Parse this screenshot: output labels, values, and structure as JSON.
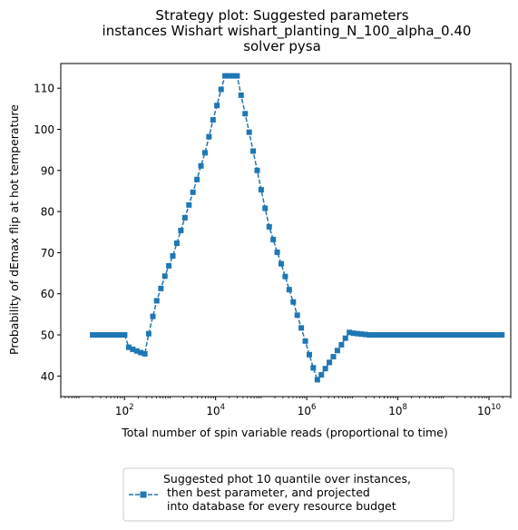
{
  "chart_data": {
    "type": "line",
    "title": [
      "Strategy plot: Suggested parameters",
      "instances Wishart wishart_planting_N_100_alpha_0.40",
      "solver pysa"
    ],
    "xlabel": "Total number of spin variable reads (proportional to time)",
    "ylabel": "Probability of dEmax flip at hot temperature",
    "xscale": "log",
    "xlim": [
      4,
      30000000000
    ],
    "ylim": [
      35,
      116
    ],
    "x_ticks": [
      {
        "value": 100,
        "base": "10",
        "exp": "2"
      },
      {
        "value": 10000,
        "base": "10",
        "exp": "4"
      },
      {
        "value": 1000000,
        "base": "10",
        "exp": "6"
      },
      {
        "value": 100000000,
        "base": "10",
        "exp": "8"
      },
      {
        "value": 10000000000,
        "base": "10",
        "exp": "10"
      }
    ],
    "y_ticks": [
      40,
      50,
      60,
      70,
      80,
      90,
      100,
      110
    ],
    "grid": false,
    "legend_position": "below plot, centered",
    "series": [
      {
        "name": "Suggested phot 10 quantile over instances,\n then best parameter, and projected\n into database for every resource budget",
        "color": "#1f77b4",
        "marker": "square",
        "linestyle": "dashed",
        "points": [
          [
            20,
            50.0
          ],
          [
            24.5,
            50.0
          ],
          [
            30,
            50.0
          ],
          [
            36.8,
            50.0
          ],
          [
            45,
            50.0
          ],
          [
            55.2,
            50.0
          ],
          [
            67.6,
            50.0
          ],
          [
            82.8,
            50.0
          ],
          [
            101,
            50.0
          ],
          [
            124,
            47.0
          ],
          [
            152,
            46.5
          ],
          [
            186,
            46.1
          ],
          [
            228,
            45.7
          ],
          [
            280,
            45.4
          ],
          [
            340,
            50.3
          ],
          [
            420,
            54.5
          ],
          [
            510,
            58.3
          ],
          [
            630,
            61.3
          ],
          [
            770,
            64.3
          ],
          [
            940,
            66.8
          ],
          [
            1150,
            69.2
          ],
          [
            1410,
            72.3
          ],
          [
            1730,
            75.4
          ],
          [
            2120,
            78.5
          ],
          [
            2600,
            81.6
          ],
          [
            3180,
            84.7
          ],
          [
            3900,
            87.8
          ],
          [
            4770,
            91.1
          ],
          [
            5850,
            94.3
          ],
          [
            7160,
            98.2
          ],
          [
            8770,
            102.3
          ],
          [
            10700,
            105.8
          ],
          [
            13200,
            109.7
          ],
          [
            16100,
            113.0
          ],
          [
            19800,
            113.0
          ],
          [
            24200,
            113.0
          ],
          [
            29600,
            113.0
          ],
          [
            36300,
            108.3
          ],
          [
            44500,
            103.8
          ],
          [
            54500,
            99.3
          ],
          [
            66700,
            94.7
          ],
          [
            81700,
            90.0
          ],
          [
            100000,
            85.3
          ],
          [
            122000,
            80.8
          ],
          [
            150000,
            76.3
          ],
          [
            184000,
            73.2
          ],
          [
            225000,
            70.1
          ],
          [
            275000,
            67.3
          ],
          [
            337000,
            64.2
          ],
          [
            413000,
            61.0
          ],
          [
            506000,
            58.0
          ],
          [
            620000,
            54.8
          ],
          [
            759000,
            51.7
          ],
          [
            930000,
            48.5
          ],
          [
            1140000,
            45.2
          ],
          [
            1390000,
            42.0
          ],
          [
            1710000,
            39.1
          ],
          [
            2090000,
            40.3
          ],
          [
            2560000,
            41.8
          ],
          [
            3140000,
            43.3
          ],
          [
            3840000,
            44.7
          ],
          [
            4710000,
            46.2
          ],
          [
            5770000,
            47.6
          ],
          [
            7060000,
            49.2
          ],
          [
            8650000,
            50.6
          ],
          [
            10600000,
            50.4
          ],
          [
            13000000,
            50.3
          ],
          [
            15900000,
            50.2
          ],
          [
            19500000,
            50.1
          ],
          [
            23900000,
            50.0
          ],
          [
            29200000,
            50.0
          ],
          [
            35800000,
            50.0
          ],
          [
            43900000,
            50.0
          ],
          [
            53700000,
            50.0
          ],
          [
            65800000,
            50.0
          ],
          [
            80600000,
            50.0
          ],
          [
            98700000,
            50.0
          ],
          [
            121000000,
            50.0
          ],
          [
            148000000,
            50.0
          ],
          [
            181000000,
            50.0
          ],
          [
            222000000,
            50.0
          ],
          [
            272000000,
            50.0
          ],
          [
            333000000,
            50.0
          ],
          [
            408000000,
            50.0
          ],
          [
            499000000,
            50.0
          ],
          [
            612000000,
            50.0
          ],
          [
            749000000,
            50.0
          ],
          [
            918000000,
            50.0
          ],
          [
            1120000000,
            50.0
          ],
          [
            1380000000,
            50.0
          ],
          [
            1690000000,
            50.0
          ],
          [
            2060000000,
            50.0
          ],
          [
            2530000000,
            50.0
          ],
          [
            3100000000,
            50.0
          ],
          [
            3790000000,
            50.0
          ],
          [
            4640000000,
            50.0
          ],
          [
            5690000000,
            50.0
          ],
          [
            6970000000,
            50.0
          ],
          [
            8530000000,
            50.0
          ],
          [
            10400000000,
            50.0
          ],
          [
            12800000000,
            50.0
          ],
          [
            15700000000,
            50.0
          ],
          [
            19200000000,
            50.0
          ]
        ]
      }
    ]
  }
}
